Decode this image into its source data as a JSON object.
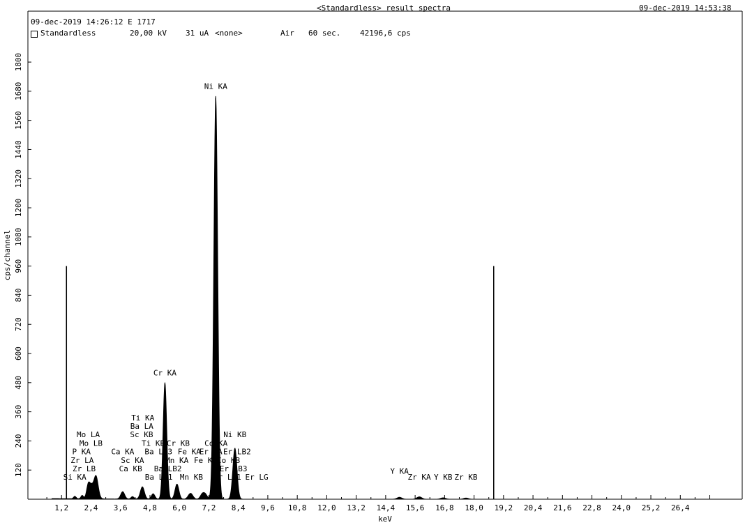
{
  "header": {
    "title": "<Standardless> result spectra",
    "start_time": "09-dec-2019 14:26:12 E 1717",
    "end_time": "09-dec-2019 14:53:38",
    "mode": "Standardless",
    "voltage": "20,00 kV",
    "current": "31 uA",
    "filter": "<none>",
    "atmosphere": "Air",
    "live_time": "60 sec.",
    "count_rate": "42196,6 cps"
  },
  "chart_data": {
    "type": "line",
    "title": "<Standardless> result spectra",
    "xlabel": "keV",
    "ylabel": "cps/channel",
    "xlim": [
      0,
      27.7
    ],
    "ylim": [
      0,
      1860
    ],
    "grid": false,
    "x_ticks": [
      1.2,
      2.4,
      3.6,
      4.8,
      6.0,
      7.2,
      8.4,
      9.6,
      10.8,
      12.0,
      13.2,
      14.4,
      15.6,
      16.8,
      18.0,
      19.2,
      20.4,
      21.6,
      22.8,
      24.0,
      25.2,
      26.4
    ],
    "x_tick_labels": [
      "1,2",
      "2,4",
      "3,6",
      "4,8",
      "6,0",
      "7,2",
      "8,4",
      "9,6",
      "10,8",
      "12,0",
      "13,2",
      "14,4",
      "15,6",
      "16,8",
      "18,0",
      "19,2",
      "20,4",
      "21,6",
      "22,8",
      "24,0",
      "25,2",
      "26,4"
    ],
    "y_ticks": [
      120,
      240,
      360,
      480,
      600,
      720,
      840,
      960,
      1080,
      1200,
      1320,
      1440,
      1560,
      1680,
      1800
    ],
    "y_tick_labels": [
      "120",
      "240",
      "360",
      "480",
      "600",
      "720",
      "840",
      "960",
      "1080",
      "1200",
      "1320",
      "1440",
      "1560",
      "1680",
      "1800"
    ],
    "markers": [
      {
        "x": 1.4,
        "y": 960
      },
      {
        "x": 18.8,
        "y": 960
      }
    ],
    "peaks": [
      {
        "x": 1.74,
        "height": 10,
        "width": 0.05
      },
      {
        "x": 2.04,
        "height": 14,
        "width": 0.05
      },
      {
        "x": 2.29,
        "height": 60,
        "width": 0.07
      },
      {
        "x": 2.6,
        "height": 95,
        "width": 0.09
      },
      {
        "x": 2.42,
        "height": 40,
        "width": 0.07
      },
      {
        "x": 3.69,
        "height": 30,
        "width": 0.08
      },
      {
        "x": 4.09,
        "height": 10,
        "width": 0.06
      },
      {
        "x": 4.47,
        "height": 24,
        "width": 0.08
      },
      {
        "x": 4.51,
        "height": 28,
        "width": 0.08
      },
      {
        "x": 4.93,
        "height": 22,
        "width": 0.07
      },
      {
        "x": 5.41,
        "height": 480,
        "width": 0.075
      },
      {
        "x": 5.9,
        "height": 62,
        "width": 0.08
      },
      {
        "x": 6.49,
        "height": 16,
        "width": 0.08
      },
      {
        "x": 6.4,
        "height": 12,
        "width": 0.08
      },
      {
        "x": 6.93,
        "height": 20,
        "width": 0.08
      },
      {
        "x": 7.06,
        "height": 18,
        "width": 0.08
      },
      {
        "x": 7.48,
        "height": 1660,
        "width": 0.08
      },
      {
        "x": 8.26,
        "height": 210,
        "width": 0.085
      },
      {
        "x": 15.77,
        "height": 10,
        "width": 0.1
      },
      {
        "x": 14.96,
        "height": 8,
        "width": 0.1
      },
      {
        "x": 16.74,
        "height": 6,
        "width": 0.1
      },
      {
        "x": 17.67,
        "height": 5,
        "width": 0.1
      }
    ],
    "annotations": [
      {
        "text": "Ni KA",
        "x": 7.48,
        "y": 1690
      },
      {
        "text": "Cr KA",
        "x": 5.41,
        "y": 510
      },
      {
        "text": "Ti KA",
        "x": 4.51,
        "y": 325
      },
      {
        "text": "Ba LA",
        "x": 4.47,
        "y": 290
      },
      {
        "text": "Sc KB",
        "x": 4.46,
        "y": 255
      },
      {
        "text": "Ti KB",
        "x": 4.93,
        "y": 220
      },
      {
        "text": "Cr KB",
        "x": 5.95,
        "y": 220
      },
      {
        "text": "Ba LB3",
        "x": 5.15,
        "y": 185
      },
      {
        "text": "Ca KA",
        "x": 3.69,
        "y": 185
      },
      {
        "text": "Sc KA",
        "x": 4.09,
        "y": 150
      },
      {
        "text": "Mn KA",
        "x": 5.9,
        "y": 150
      },
      {
        "text": "Fe KA",
        "x": 6.4,
        "y": 185
      },
      {
        "text": "Fe KB",
        "x": 7.06,
        "y": 150
      },
      {
        "text": "Ca KB",
        "x": 4.01,
        "y": 115
      },
      {
        "text": "Ba LB2",
        "x": 5.53,
        "y": 115
      },
      {
        "text": "Ba LB1",
        "x": 5.16,
        "y": 80
      },
      {
        "text": "Mn KB",
        "x": 6.49,
        "y": 80
      },
      {
        "text": "Mo LA",
        "x": 2.29,
        "y": 255
      },
      {
        "text": "Mo LB",
        "x": 2.4,
        "y": 220
      },
      {
        "text": "P KA",
        "x": 2.01,
        "y": 185
      },
      {
        "text": "Zr LA",
        "x": 2.04,
        "y": 150
      },
      {
        "text": "Zr LB",
        "x": 2.12,
        "y": 115
      },
      {
        "text": "Si KA",
        "x": 1.74,
        "y": 80
      },
      {
        "text": "Co KA",
        "x": 7.49,
        "y": 220
      },
      {
        "text": "Er LA",
        "x": 7.28,
        "y": 185
      },
      {
        "text": "Er LB2",
        "x": 8.35,
        "y": 185
      },
      {
        "text": "Co KB",
        "x": 8.0,
        "y": 150
      },
      {
        "text": "Er LB3",
        "x": 8.2,
        "y": 115
      },
      {
        "text": "Er LB1",
        "x": 7.95,
        "y": 80
      },
      {
        "text": "Er LG",
        "x": 9.15,
        "y": 80
      },
      {
        "text": "Ni KB",
        "x": 8.26,
        "y": 255
      },
      {
        "text": "Y KA",
        "x": 14.96,
        "y": 105
      },
      {
        "text": "Zr KA",
        "x": 15.77,
        "y": 80
      },
      {
        "text": "Y KB",
        "x": 16.74,
        "y": 80
      },
      {
        "text": "Zr KB",
        "x": 17.67,
        "y": 80
      }
    ]
  }
}
